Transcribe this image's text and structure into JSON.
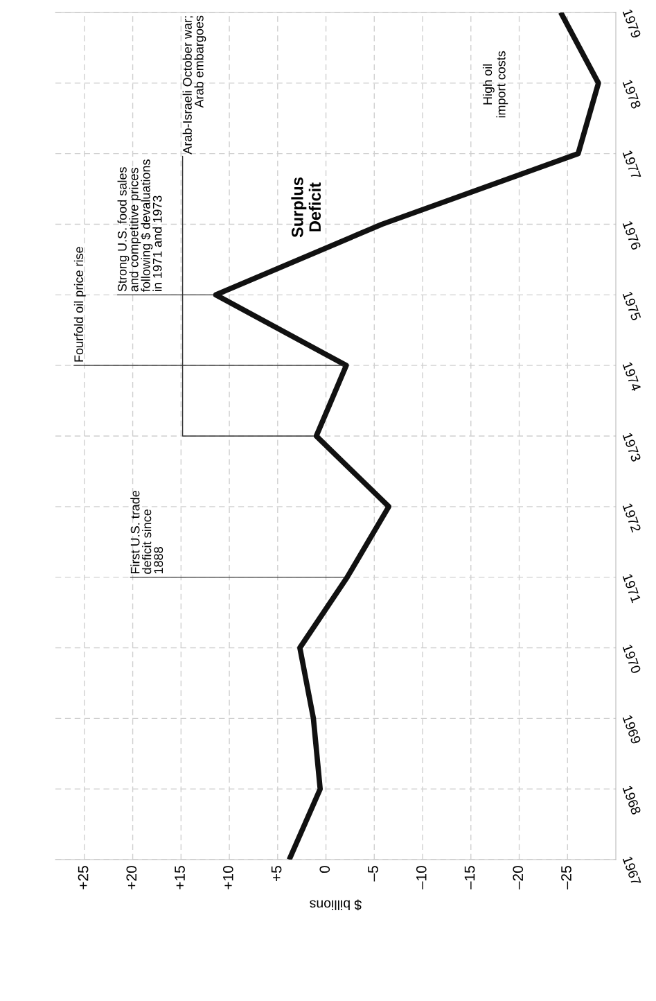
{
  "chart_data": {
    "type": "line",
    "xlabel": "$ billions",
    "x": [
      3.8,
      0.6,
      1.3,
      2.7,
      -2.2,
      -6.5,
      1.0,
      -2.1,
      11.4,
      -5.8,
      -26.1,
      -28.2,
      -24.3
    ],
    "values": [
      1967,
      1968,
      1969,
      1970,
      1971,
      1972,
      1973,
      1974,
      1975,
      1976,
      1977,
      1978,
      1979
    ],
    "color": "#111111",
    "xlim": [
      28,
      -30
    ],
    "xticks": [
      {
        "value": 25,
        "label": "+25"
      },
      {
        "value": 20,
        "label": "+20"
      },
      {
        "value": 15,
        "label": "+15"
      },
      {
        "value": 10,
        "label": "+10"
      },
      {
        "value": 5,
        "label": "+5"
      },
      0,
      {
        "value": -5,
        "label": "–5"
      },
      {
        "value": -10,
        "label": "–10"
      },
      {
        "value": -15,
        "label": "–15"
      },
      {
        "value": -20,
        "label": "–20"
      },
      {
        "value": -25,
        "label": "–25"
      }
    ],
    "ylim": [
      1967,
      1979
    ],
    "yticks": [
      1967,
      1968,
      1969,
      1970,
      1971,
      1972,
      1973,
      1974,
      1975,
      1976,
      1977,
      1978,
      1979
    ],
    "grid": true,
    "marker": "none",
    "line_style": "solid",
    "annotations": [
      {
        "text": "First U.S. trade\ndeficit since\n1888",
        "x": -2.2,
        "y": 1971
      },
      {
        "text": "Arab-Israeli October war;\nArab embargoes",
        "x": 1.0,
        "y": 1973
      },
      {
        "text": "Fourfold oil price rise",
        "x": -2.1,
        "y": 1974
      },
      {
        "text": "Strong U.S. food sales\nand competitive prices\nfollowing $ devaluations\nin 1971 and 1973",
        "x": 11.4,
        "y": 1975
      },
      "Surplus\nDeficit",
      "High oil\nimport costs"
    ]
  }
}
